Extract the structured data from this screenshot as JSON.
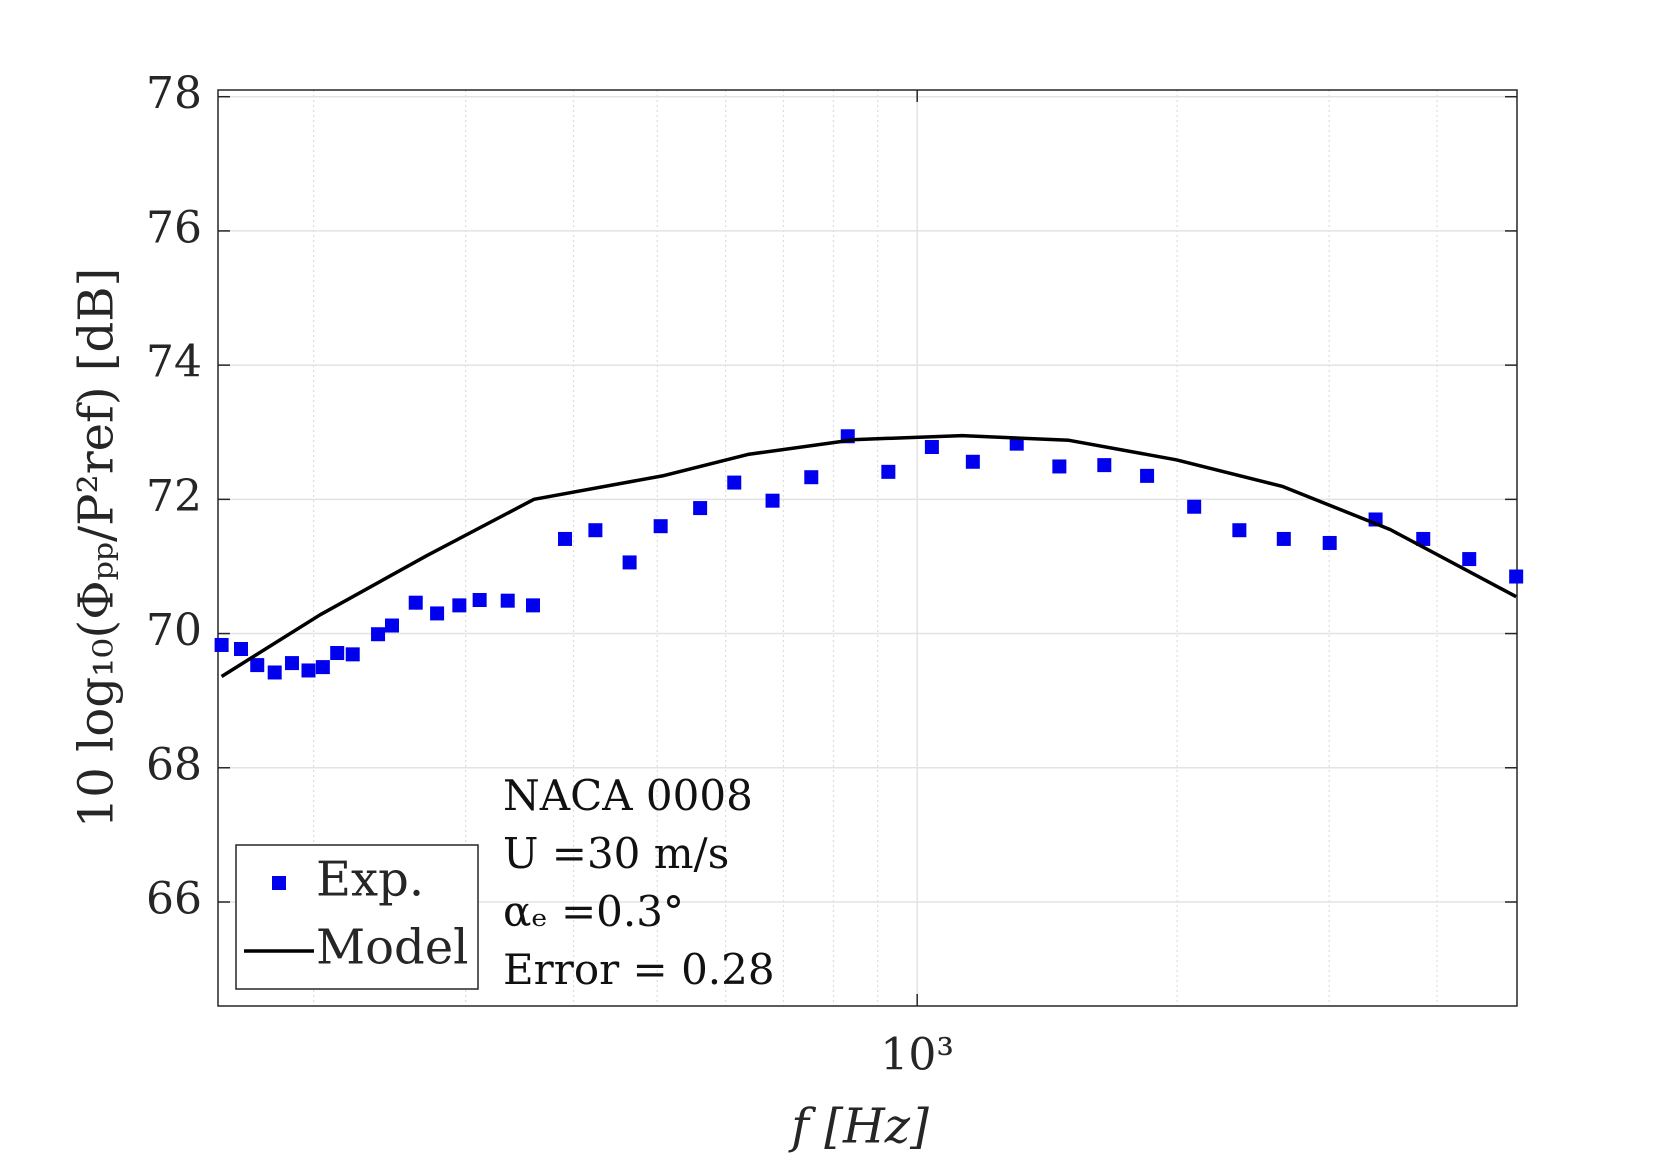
{
  "chart_data": {
    "type": "scatter-line",
    "xlabel": "f  [Hz]",
    "ylabel": "10 log₁₀(Φₚₚ/P²ref) [dB]",
    "xscale": "log",
    "xlim": [
      155,
      4950
    ],
    "ylim": [
      64.45,
      78.1
    ],
    "xticks": [
      {
        "value": 1000,
        "label": "10³"
      }
    ],
    "xminorticks": [
      200,
      300,
      400,
      500,
      600,
      700,
      800,
      900,
      2000,
      3000,
      4000
    ],
    "yticks": [
      66,
      68,
      70,
      72,
      74,
      76,
      78
    ],
    "grid": true,
    "legend": "lower left",
    "annotations": [
      "NACA 0008",
      "U =30 m/s",
      "αₑ =0.3°",
      "Error = 0.28"
    ],
    "series": [
      {
        "name": "Exp.",
        "kind": "scatter",
        "color": "#0000ee",
        "x": [
          156.5,
          164.8,
          172.1,
          180.3,
          188.8,
          197.3,
          205,
          213,
          222,
          237.5,
          246.5,
          262.6,
          278,
          295,
          311.4,
          335.6,
          359,
          391,
          424,
          464.5,
          504.6,
          560.6,
          614,
          680,
          754,
          831,
          926,
          1040,
          1160,
          1304,
          1461,
          1647,
          1846,
          2093,
          2361,
          2658,
          3004,
          3395,
          3855,
          4358,
          4939
        ],
        "values": [
          69.83,
          69.77,
          69.53,
          69.42,
          69.56,
          69.45,
          69.5,
          69.71,
          69.69,
          69.99,
          70.12,
          70.46,
          70.3,
          70.42,
          70.5,
          70.49,
          70.42,
          71.41,
          71.54,
          71.06,
          71.6,
          71.87,
          72.25,
          71.98,
          72.33,
          72.94,
          72.41,
          72.78,
          72.56,
          72.83,
          72.49,
          72.51,
          72.35,
          71.89,
          71.54,
          71.41,
          71.35,
          71.7,
          71.41,
          71.11,
          70.85
        ]
      },
      {
        "name": "Model",
        "kind": "line",
        "color": "#000000",
        "x": [
          156.5,
          203.5,
          270.4,
          360,
          507,
          637,
          847,
          1127,
          1499,
          1995,
          2652,
          3529,
          4939
        ],
        "values": [
          69.36,
          70.28,
          71.16,
          72.0,
          72.35,
          72.67,
          72.89,
          72.95,
          72.88,
          72.59,
          72.19,
          71.55,
          70.55
        ]
      }
    ]
  }
}
